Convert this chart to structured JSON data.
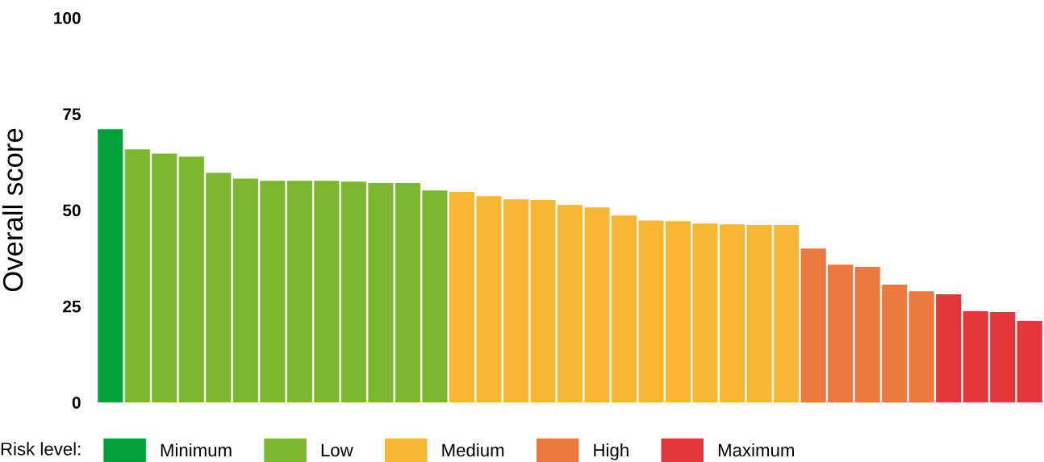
{
  "chart_data": {
    "type": "bar",
    "ylabel": "Overall score",
    "legend_title": "Risk level:",
    "legend": "bottom",
    "grid": false,
    "stacked": true,
    "categories": [
      null,
      null,
      null,
      null,
      null,
      null,
      null,
      null,
      null,
      null,
      null,
      null,
      null,
      null,
      null,
      null,
      null,
      null,
      null,
      null,
      null,
      null,
      null,
      null,
      null,
      null,
      null,
      null,
      null,
      null,
      null,
      null,
      null,
      null,
      null
    ],
    "series": [
      {
        "name": "Minimum",
        "color": "#00a03a",
        "values": [
          71,
          null,
          null,
          null,
          null,
          null,
          null,
          null,
          null,
          null,
          null,
          null,
          null,
          null,
          null,
          null,
          null,
          null,
          null,
          null,
          null,
          null,
          null,
          null,
          null,
          null,
          null,
          null,
          null,
          null,
          null,
          null,
          null,
          null,
          null
        ]
      },
      {
        "name": "Low",
        "color": "#7cb82f",
        "values": [
          null,
          65.8,
          64.7,
          63.9,
          59.7,
          58.2,
          57.6,
          57.6,
          57.6,
          57.4,
          57,
          57,
          55.1,
          null,
          null,
          null,
          null,
          null,
          null,
          null,
          null,
          null,
          null,
          null,
          null,
          null,
          null,
          null,
          null,
          null,
          null,
          null,
          null,
          null,
          null
        ]
      },
      {
        "name": "Medium",
        "color": "#f9b634",
        "values": [
          null,
          null,
          null,
          null,
          null,
          null,
          null,
          null,
          null,
          null,
          null,
          null,
          null,
          54.7,
          53.6,
          52.8,
          52.6,
          51.3,
          50.7,
          48.6,
          47.3,
          47.1,
          46.5,
          46.3,
          46.1,
          46.1,
          null,
          null,
          null,
          null,
          null,
          null,
          null,
          null,
          null
        ]
      },
      {
        "name": "High",
        "color": "#ec7a3e",
        "values": [
          null,
          null,
          null,
          null,
          null,
          null,
          null,
          null,
          null,
          null,
          null,
          null,
          null,
          null,
          null,
          null,
          null,
          null,
          null,
          null,
          null,
          null,
          null,
          null,
          null,
          null,
          40,
          35.8,
          35.2,
          30.6,
          28.9,
          null,
          null,
          null,
          null
        ]
      },
      {
        "name": "Maximum",
        "color": "#e3373a",
        "values": [
          null,
          null,
          null,
          null,
          null,
          null,
          null,
          null,
          null,
          null,
          null,
          null,
          null,
          null,
          null,
          null,
          null,
          null,
          null,
          null,
          null,
          null,
          null,
          null,
          null,
          null,
          null,
          null,
          null,
          null,
          null,
          28.1,
          23.7,
          23.5,
          21.2
        ]
      }
    ],
    "ylim": [
      0,
      100
    ],
    "yticks": [
      0,
      25,
      50,
      75,
      100
    ]
  }
}
